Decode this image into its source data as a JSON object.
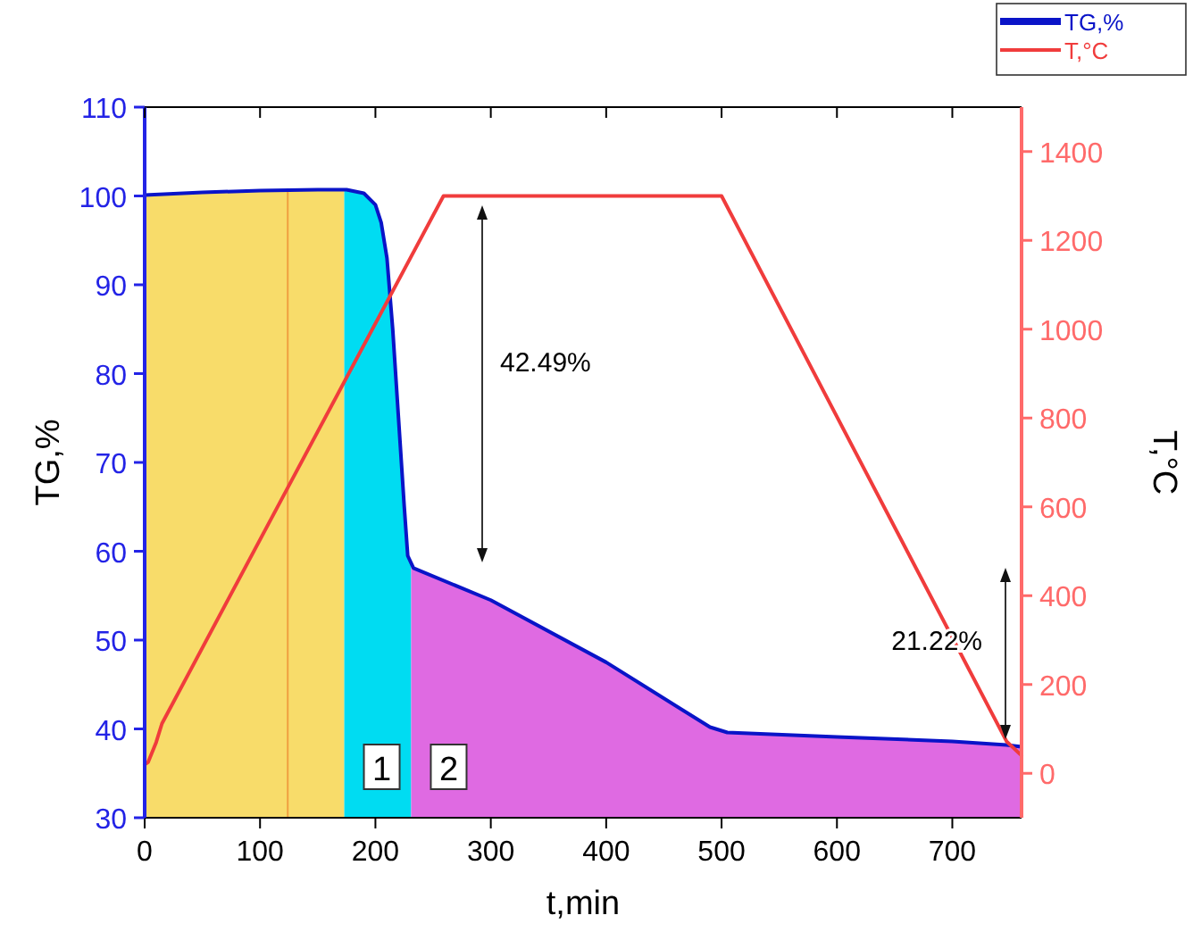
{
  "chart_data": {
    "type": "line",
    "xlabel": "t,min",
    "ylabel": "TG,%",
    "y2label": "T,°C",
    "xlim": [
      0,
      760
    ],
    "xticks": [
      0,
      100,
      200,
      300,
      400,
      500,
      600,
      700
    ],
    "ylim": [
      30,
      110
    ],
    "yticks": [
      30,
      40,
      50,
      60,
      70,
      80,
      90,
      100,
      110
    ],
    "y2lim": [
      -100,
      1500
    ],
    "y2ticks": [
      0,
      200,
      400,
      600,
      800,
      1000,
      1200,
      1400
    ],
    "series": [
      {
        "name": "TG,%",
        "color": "#0a14c8",
        "x": [
          0,
          50,
          100,
          150,
          175,
          190,
          200,
          205,
          210,
          215,
          220,
          225,
          228,
          233,
          300,
          400,
          490,
          505,
          600,
          700,
          747,
          760
        ],
        "values": [
          100.1,
          100.4,
          100.6,
          100.7,
          100.7,
          100.3,
          99,
          97,
          93,
          85,
          75,
          65,
          59.5,
          58.1,
          54.5,
          47.5,
          40.2,
          39.6,
          39.1,
          38.6,
          38.2,
          38
        ]
      },
      {
        "name": "T,°C",
        "axis": "y2",
        "color": "#f03c3c",
        "x": [
          0,
          3,
          10,
          15,
          124,
          259,
          500,
          747,
          760
        ],
        "values": [
          20,
          25,
          70,
          112,
          643,
          1300,
          1300,
          72,
          40
        ]
      }
    ],
    "bands": [
      {
        "axis": "x",
        "from": 0,
        "to": 173,
        "label": null,
        "color": "#f8dc6a"
      },
      {
        "axis": "x",
        "from": 173,
        "to": 231,
        "label": "1",
        "color": "#00dcf2"
      },
      {
        "axis": "x",
        "from": 231,
        "to": 760,
        "label": "2",
        "color": "#df6ae2"
      }
    ],
    "ref_lines": [
      {
        "axis": "x",
        "value": 124,
        "label": null,
        "color": "#f0a040"
      }
    ],
    "annotations": [
      "42.49%",
      "21.22%"
    ],
    "legend": "top right",
    "grid": false
  }
}
